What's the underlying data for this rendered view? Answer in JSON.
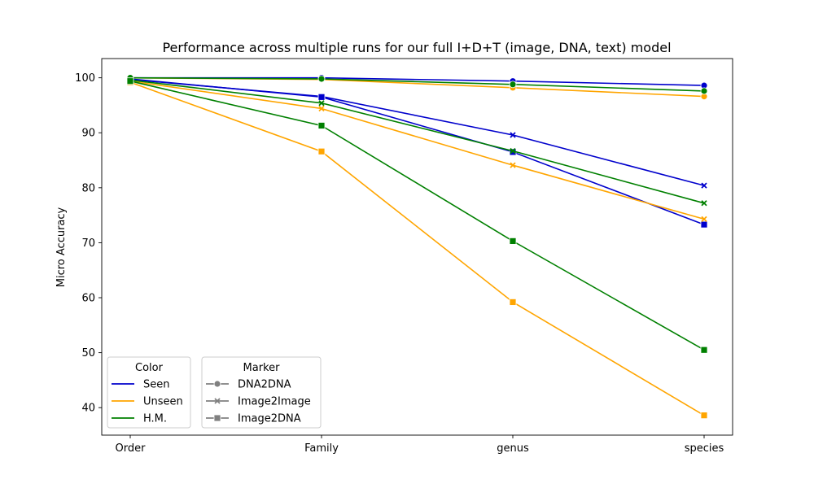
{
  "chart_data": {
    "type": "line",
    "title": "Performance across multiple runs for our full I+D+T (image, DNA, text) model",
    "xlabel": "",
    "ylabel": "Micro Accuracy",
    "categories": [
      "Order",
      "Family",
      "genus",
      "species"
    ],
    "ylim": [
      35,
      103.5
    ],
    "yticks": [
      40,
      50,
      60,
      70,
      80,
      90,
      100
    ],
    "grid": false,
    "colors": {
      "Seen": "#0000cc",
      "Unseen": "#ffa500",
      "H.M.": "#008000",
      "marker_legend": "#808080"
    },
    "series": [
      {
        "color": "Seen",
        "marker": "DNA2DNA",
        "values": [
          100.0,
          100.0,
          99.4,
          98.6
        ]
      },
      {
        "color": "Seen",
        "marker": "Image2Image",
        "values": [
          99.7,
          96.6,
          89.6,
          80.4
        ]
      },
      {
        "color": "Seen",
        "marker": "Image2DNA",
        "values": [
          99.8,
          96.5,
          86.5,
          73.3
        ]
      },
      {
        "color": "Unseen",
        "marker": "DNA2DNA",
        "values": [
          100.0,
          99.7,
          98.2,
          96.6
        ]
      },
      {
        "color": "Unseen",
        "marker": "Image2Image",
        "values": [
          99.4,
          94.4,
          84.1,
          74.3
        ]
      },
      {
        "color": "Unseen",
        "marker": "Image2DNA",
        "values": [
          99.2,
          86.6,
          59.2,
          38.6
        ]
      },
      {
        "color": "H.M.",
        "marker": "DNA2DNA",
        "values": [
          100.0,
          99.8,
          98.8,
          97.6
        ]
      },
      {
        "color": "H.M.",
        "marker": "Image2Image",
        "values": [
          99.6,
          95.4,
          86.7,
          77.2
        ]
      },
      {
        "color": "H.M.",
        "marker": "Image2DNA",
        "values": [
          99.4,
          91.3,
          70.3,
          50.5
        ]
      }
    ],
    "legend": {
      "placement": "bottom-left",
      "color_title": "Color",
      "color_entries": [
        "Seen",
        "Unseen",
        "H.M."
      ],
      "marker_title": "Marker",
      "marker_entries": [
        "DNA2DNA",
        "Image2Image",
        "Image2DNA"
      ]
    }
  }
}
